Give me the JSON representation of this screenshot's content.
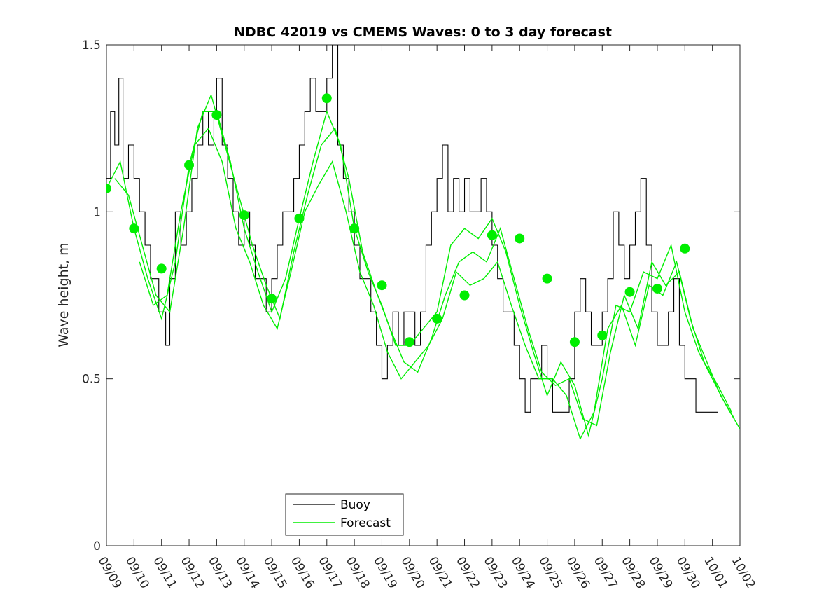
{
  "chart_data": {
    "type": "line",
    "title": "NDBC 42019 vs CMEMS Waves: 0 to 3 day forecast",
    "xlabel": "",
    "ylabel": "Wave height, m",
    "ylim": [
      0,
      1.5
    ],
    "yticks": [
      0,
      0.5,
      1,
      1.5
    ],
    "ytick_labels": [
      "0",
      "0.5",
      "1",
      "1.5"
    ],
    "xlim_days": [
      0,
      23
    ],
    "xtick_labels": [
      "09/09",
      "09/10",
      "09/11",
      "09/12",
      "09/13",
      "09/14",
      "09/15",
      "09/16",
      "09/17",
      "09/18",
      "09/19",
      "09/20",
      "09/21",
      "09/22",
      "09/23",
      "09/24",
      "09/25",
      "09/26",
      "09/27",
      "09/28",
      "09/29",
      "09/30",
      "10/01",
      "10/02"
    ],
    "grid": false,
    "legend": {
      "placement": "bottom-center",
      "entries": [
        "Buoy",
        "Forecast"
      ]
    },
    "colors": {
      "buoy": "#000000",
      "forecast": "#00ee00",
      "markers": "#00ee00"
    },
    "series": [
      {
        "name": "Buoy",
        "style": "step",
        "x": [
          0,
          0.15,
          0.3,
          0.45,
          0.6,
          0.8,
          1.0,
          1.2,
          1.4,
          1.6,
          1.75,
          1.9,
          2.0,
          2.15,
          2.3,
          2.5,
          2.7,
          2.9,
          3.1,
          3.3,
          3.5,
          3.7,
          3.9,
          4.0,
          4.2,
          4.4,
          4.6,
          4.8,
          5.0,
          5.2,
          5.4,
          5.6,
          5.8,
          6.0,
          6.2,
          6.4,
          6.6,
          6.8,
          7.0,
          7.2,
          7.4,
          7.6,
          7.8,
          8.0,
          8.2,
          8.4,
          8.6,
          8.8,
          9.0,
          9.2,
          9.4,
          9.6,
          9.8,
          10.0,
          10.2,
          10.4,
          10.6,
          10.8,
          11.0,
          11.2,
          11.4,
          11.6,
          11.8,
          12.0,
          12.2,
          12.4,
          12.6,
          12.8,
          13.0,
          13.2,
          13.4,
          13.6,
          13.8,
          14.0,
          14.2,
          14.4,
          14.6,
          14.8,
          15.0,
          15.2,
          15.4,
          15.6,
          15.8,
          16.0,
          16.2,
          16.4,
          16.6,
          16.8,
          17.0,
          17.2,
          17.4,
          17.6,
          17.8,
          18.0,
          18.2,
          18.4,
          18.6,
          18.8,
          19.0,
          19.2,
          19.4,
          19.6,
          19.8,
          20.0,
          20.2,
          20.4,
          20.6,
          20.8,
          21.0,
          21.2,
          21.4,
          21.6,
          21.8,
          22.0,
          22.2
        ],
        "values": [
          1.1,
          1.3,
          1.2,
          1.4,
          1.1,
          1.2,
          1.1,
          1.0,
          0.9,
          0.8,
          0.8,
          0.7,
          0.7,
          0.6,
          0.8,
          1.0,
          0.9,
          1.0,
          1.1,
          1.2,
          1.3,
          1.2,
          1.3,
          1.4,
          1.2,
          1.1,
          1.0,
          0.9,
          1.0,
          0.9,
          0.8,
          0.8,
          0.7,
          0.8,
          0.9,
          1.0,
          1.0,
          1.1,
          1.2,
          1.3,
          1.4,
          1.3,
          1.3,
          1.4,
          1.5,
          1.2,
          1.1,
          1.0,
          0.9,
          0.8,
          0.8,
          0.7,
          0.6,
          0.5,
          0.6,
          0.7,
          0.6,
          0.7,
          0.7,
          0.6,
          0.7,
          0.9,
          1.0,
          1.1,
          1.2,
          1.0,
          1.1,
          1.0,
          1.1,
          1.0,
          1.0,
          1.1,
          1.0,
          0.9,
          0.8,
          0.7,
          0.7,
          0.6,
          0.5,
          0.4,
          0.5,
          0.5,
          0.6,
          0.5,
          0.4,
          0.4,
          0.4,
          0.5,
          0.7,
          0.8,
          0.7,
          0.6,
          0.6,
          0.7,
          0.8,
          1.0,
          0.9,
          0.8,
          0.9,
          1.0,
          1.1,
          0.9,
          0.7,
          0.6,
          0.6,
          0.7,
          0.8,
          0.6,
          0.5,
          0.5,
          0.4,
          0.4,
          0.4,
          0.4,
          0.4
        ]
      },
      {
        "name": "Forecast",
        "style": "line",
        "x": [
          0,
          0.5,
          1.0,
          1.5,
          2.0,
          2.5,
          3.0,
          3.5,
          4.0,
          4.5,
          5.0,
          5.5,
          6.0,
          6.5,
          7.0,
          7.5,
          8.0,
          8.5,
          9.0,
          9.5,
          10.0,
          10.5,
          11.0,
          11.5,
          12.0,
          12.5,
          13.0,
          13.5,
          14.0,
          14.5,
          15.0,
          15.5,
          16.0,
          16.5,
          17.0,
          17.5,
          18.0,
          18.5,
          19.0,
          19.5,
          20.0,
          20.5,
          21.0,
          21.5,
          22.0,
          22.5,
          23.0
        ],
        "values": [
          1.07,
          1.15,
          0.95,
          0.8,
          0.68,
          0.85,
          1.14,
          1.3,
          1.3,
          1.15,
          0.95,
          0.82,
          0.7,
          0.8,
          0.98,
          1.15,
          1.3,
          1.2,
          0.95,
          0.82,
          0.72,
          0.6,
          0.6,
          0.65,
          0.7,
          0.9,
          0.95,
          0.92,
          0.98,
          0.88,
          0.72,
          0.58,
          0.45,
          0.55,
          0.48,
          0.33,
          0.5,
          0.72,
          0.7,
          0.82,
          0.8,
          0.9,
          0.7,
          0.58,
          0.5,
          0.42,
          0.35
        ]
      },
      {
        "name": "",
        "style": "line",
        "x": [
          0.3,
          0.8,
          1.3,
          1.8,
          2.3,
          2.8,
          3.3,
          3.8,
          4.3,
          4.8,
          5.3,
          5.8,
          6.3,
          6.8,
          7.3,
          7.8,
          8.3,
          8.8,
          9.3,
          9.8,
          10.3,
          10.8,
          11.3,
          11.8,
          12.3,
          12.8,
          13.3,
          13.8,
          14.3,
          14.8,
          15.3,
          15.8,
          16.3,
          16.8,
          17.3,
          17.8,
          18.3,
          18.8,
          19.3,
          19.8,
          20.3,
          20.8,
          21.3,
          21.8,
          22.3,
          22.8
        ],
        "values": [
          1.1,
          1.05,
          0.9,
          0.75,
          0.7,
          0.95,
          1.25,
          1.35,
          1.2,
          1.05,
          0.9,
          0.78,
          0.68,
          0.88,
          1.05,
          1.2,
          1.25,
          1.1,
          0.88,
          0.76,
          0.65,
          0.55,
          0.52,
          0.62,
          0.75,
          0.85,
          0.88,
          0.85,
          0.95,
          0.8,
          0.65,
          0.52,
          0.48,
          0.5,
          0.38,
          0.36,
          0.58,
          0.75,
          0.65,
          0.85,
          0.78,
          0.82,
          0.65,
          0.55,
          0.45,
          0.38
        ]
      },
      {
        "name": "",
        "style": "line",
        "x": [
          1.2,
          1.7,
          2.2,
          2.7,
          3.2,
          3.7,
          4.2,
          4.7,
          5.2,
          5.7,
          6.2,
          6.7,
          7.2,
          7.7,
          8.2,
          8.7,
          9.2,
          9.7,
          10.2,
          10.7,
          11.2,
          11.7,
          12.2,
          12.7,
          13.2,
          13.7,
          14.2,
          14.7,
          15.2,
          15.7,
          16.2,
          16.7,
          17.2,
          17.7,
          18.2,
          18.7,
          19.2,
          19.7,
          20.2,
          20.7,
          21.2,
          21.7,
          22.2,
          22.7
        ],
        "values": [
          0.85,
          0.72,
          0.75,
          1.0,
          1.2,
          1.25,
          1.15,
          0.95,
          0.85,
          0.72,
          0.65,
          0.82,
          1.0,
          1.08,
          1.15,
          1.0,
          0.82,
          0.72,
          0.58,
          0.5,
          0.55,
          0.6,
          0.68,
          0.82,
          0.78,
          0.8,
          0.85,
          0.72,
          0.6,
          0.5,
          0.5,
          0.45,
          0.32,
          0.4,
          0.65,
          0.72,
          0.6,
          0.78,
          0.75,
          0.85,
          0.68,
          0.55,
          0.48,
          0.4
        ]
      }
    ],
    "markers": {
      "x": [
        0,
        1,
        2,
        3,
        4,
        5,
        6,
        7,
        8,
        9,
        10,
        11,
        12,
        13,
        14,
        15,
        16,
        17,
        18,
        19,
        20,
        21
      ],
      "values": [
        1.07,
        0.95,
        0.83,
        1.14,
        1.29,
        0.99,
        0.74,
        0.98,
        1.34,
        0.95,
        0.78,
        0.61,
        0.68,
        0.75,
        0.93,
        0.92,
        0.8,
        0.61,
        0.63,
        0.76,
        0.77,
        0.89
      ]
    }
  }
}
